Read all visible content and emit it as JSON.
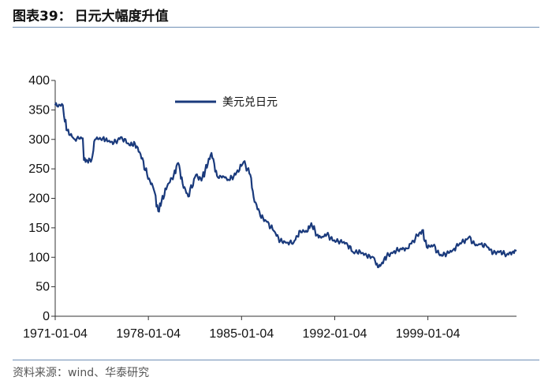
{
  "header": {
    "figure_label": "图表39：",
    "title": "日元大幅度升值"
  },
  "footer": {
    "source": "资料来源：wind、华泰研究"
  },
  "chart_data": {
    "type": "line",
    "title": "日元大幅度升值",
    "xlabel": "",
    "ylabel": "",
    "ylim": [
      0,
      400
    ],
    "yticks": [
      0,
      50,
      100,
      150,
      200,
      250,
      300,
      350,
      400
    ],
    "xlim": [
      "1971-01-04",
      "2005-09-01"
    ],
    "xtick_labels": [
      "1971-01-04",
      "1978-01-04",
      "1985-01-04",
      "1992-01-04",
      "1999-01-04"
    ],
    "grid": false,
    "legend": "top-center",
    "color": "#1a3a7c",
    "series": [
      {
        "name": "美元兑日元",
        "points": [
          [
            "1971-01",
            358
          ],
          [
            "1971-08",
            358
          ],
          [
            "1971-09",
            340
          ],
          [
            "1971-12",
            315
          ],
          [
            "1972-06",
            301
          ],
          [
            "1973-02",
            302
          ],
          [
            "1973-03",
            265
          ],
          [
            "1973-06",
            264
          ],
          [
            "1973-10",
            266
          ],
          [
            "1974-01",
            300
          ],
          [
            "1974-08",
            302
          ],
          [
            "1975-01",
            297
          ],
          [
            "1975-06",
            294
          ],
          [
            "1976-01",
            304
          ],
          [
            "1976-08",
            290
          ],
          [
            "1977-01",
            293
          ],
          [
            "1977-06",
            275
          ],
          [
            "1977-12",
            240
          ],
          [
            "1978-06",
            215
          ],
          [
            "1978-10",
            178
          ],
          [
            "1979-01",
            195
          ],
          [
            "1979-06",
            220
          ],
          [
            "1979-12",
            240
          ],
          [
            "1980-04",
            260
          ],
          [
            "1980-08",
            225
          ],
          [
            "1981-01",
            203
          ],
          [
            "1981-08",
            240
          ],
          [
            "1982-01",
            230
          ],
          [
            "1982-10",
            277
          ],
          [
            "1983-03",
            238
          ],
          [
            "1983-10",
            235
          ],
          [
            "1984-01",
            232
          ],
          [
            "1984-06",
            237
          ],
          [
            "1985-01",
            255
          ],
          [
            "1985-03",
            262
          ],
          [
            "1985-09",
            240
          ],
          [
            "1985-12",
            202
          ],
          [
            "1986-06",
            170
          ],
          [
            "1986-12",
            160
          ],
          [
            "1987-06",
            145
          ],
          [
            "1987-12",
            128
          ],
          [
            "1988-06",
            125
          ],
          [
            "1988-12",
            125
          ],
          [
            "1989-06",
            145
          ],
          [
            "1989-12",
            143
          ],
          [
            "1990-04",
            158
          ],
          [
            "1990-09",
            138
          ],
          [
            "1991-01",
            133
          ],
          [
            "1991-06",
            139
          ],
          [
            "1991-12",
            128
          ],
          [
            "1992-06",
            127
          ],
          [
            "1992-12",
            124
          ],
          [
            "1993-06",
            108
          ],
          [
            "1993-12",
            110
          ],
          [
            "1994-06",
            102
          ],
          [
            "1994-12",
            100
          ],
          [
            "1995-04",
            83
          ],
          [
            "1995-07",
            88
          ],
          [
            "1995-12",
            102
          ],
          [
            "1996-06",
            109
          ],
          [
            "1996-12",
            114
          ],
          [
            "1997-06",
            115
          ],
          [
            "1997-12",
            128
          ],
          [
            "1998-08",
            146
          ],
          [
            "1998-12",
            117
          ],
          [
            "1999-06",
            120
          ],
          [
            "1999-12",
            103
          ],
          [
            "2000-06",
            106
          ],
          [
            "2000-12",
            113
          ],
          [
            "2001-06",
            124
          ],
          [
            "2001-12",
            130
          ],
          [
            "2002-02",
            134
          ],
          [
            "2002-08",
            120
          ],
          [
            "2002-12",
            122
          ],
          [
            "2003-06",
            119
          ],
          [
            "2003-12",
            107
          ],
          [
            "2004-06",
            110
          ],
          [
            "2004-12",
            104
          ],
          [
            "2005-06",
            110
          ],
          [
            "2005-09",
            111
          ]
        ]
      }
    ]
  }
}
